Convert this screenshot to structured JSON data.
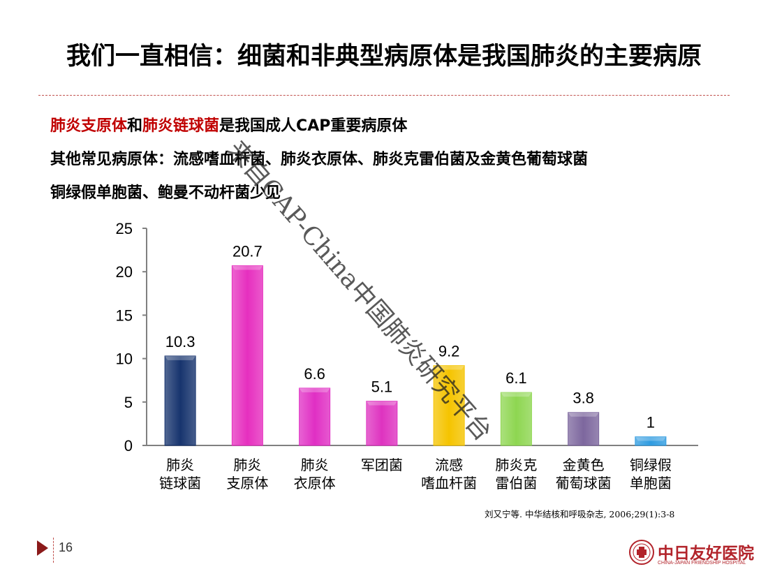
{
  "title": "我们一直相信：细菌和非典型病原体是我国肺炎的主要病原",
  "bullets": {
    "line1_red1": "肺炎支原体",
    "line1_mid": "和",
    "line1_red2": "肺炎链球菌",
    "line1_rest": "是我国成人CAP重要病原体",
    "line2": "其他常见病原体：流感嗜血杆菌、肺炎衣原体、肺炎克雷伯菌及金黄色葡萄球菌",
    "line3": "铜绿假单胞菌、鲍曼不动杆菌少见"
  },
  "chart_data": {
    "type": "bar",
    "categories": [
      [
        "肺炎",
        "链球菌"
      ],
      [
        "肺炎",
        "支原体"
      ],
      [
        "肺炎",
        "衣原体"
      ],
      [
        "军团菌"
      ],
      [
        "流感",
        "嗜血杆菌"
      ],
      [
        "肺炎克",
        "雷伯菌"
      ],
      [
        "金黄色",
        "葡萄球菌"
      ],
      [
        "铜绿假",
        "单胞菌"
      ]
    ],
    "values": [
      10.3,
      20.7,
      6.6,
      5.1,
      9.2,
      6.1,
      3.8,
      1
    ],
    "value_labels": [
      "10.3",
      "20.7",
      "6.6",
      "5.1",
      "9.2",
      "6.1",
      "3.8",
      "1"
    ],
    "colors": [
      "#17346e",
      "#e62fbf",
      "#e02fc4",
      "#de33c0",
      "#f5c400",
      "#8ed651",
      "#7d679e",
      "#2f9be0"
    ],
    "ylim": [
      0,
      25
    ],
    "yticks": [
      "0",
      "5",
      "10",
      "15",
      "20",
      "25"
    ],
    "grid": false
  },
  "source": "刘又宁等. 中华结核和呼吸杂志, 2006;29(1):3-8",
  "page_number": "16",
  "watermark": "来自CAP-China中国肺炎研究平台",
  "logo": {
    "name": "中日友好医院",
    "subtitle": "CHINA-JAPAN FRIENDSHIP HOSPITAL"
  }
}
